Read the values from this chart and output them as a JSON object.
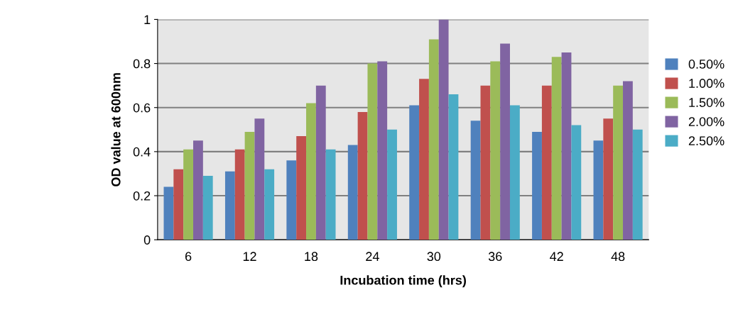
{
  "chart_data": {
    "type": "bar",
    "xlabel": "Incubation time (hrs)",
    "ylabel": "OD value at 600nm",
    "categories": [
      "6",
      "12",
      "18",
      "24",
      "30",
      "36",
      "42",
      "48"
    ],
    "series": [
      {
        "name": "0.50%",
        "color": "#4f81bd",
        "values": [
          0.24,
          0.31,
          0.36,
          0.43,
          0.61,
          0.54,
          0.49,
          0.45
        ]
      },
      {
        "name": "1.00%",
        "color": "#c0504d",
        "values": [
          0.32,
          0.41,
          0.47,
          0.58,
          0.73,
          0.7,
          0.7,
          0.55
        ]
      },
      {
        "name": "1.50%",
        "color": "#9bbb59",
        "values": [
          0.41,
          0.49,
          0.62,
          0.8,
          0.91,
          0.81,
          0.83,
          0.7
        ]
      },
      {
        "name": "2.00%",
        "color": "#8064a2",
        "values": [
          0.45,
          0.55,
          0.7,
          0.81,
          1.0,
          0.89,
          0.85,
          0.72
        ]
      },
      {
        "name": "2.50%",
        "color": "#4bacc6",
        "values": [
          0.29,
          0.32,
          0.41,
          0.5,
          0.66,
          0.61,
          0.52,
          0.5
        ]
      }
    ],
    "ylim": [
      0,
      1
    ],
    "yticks": [
      0,
      0.2,
      0.4,
      0.6,
      0.8,
      1
    ],
    "grid": "y",
    "legend": "right"
  }
}
